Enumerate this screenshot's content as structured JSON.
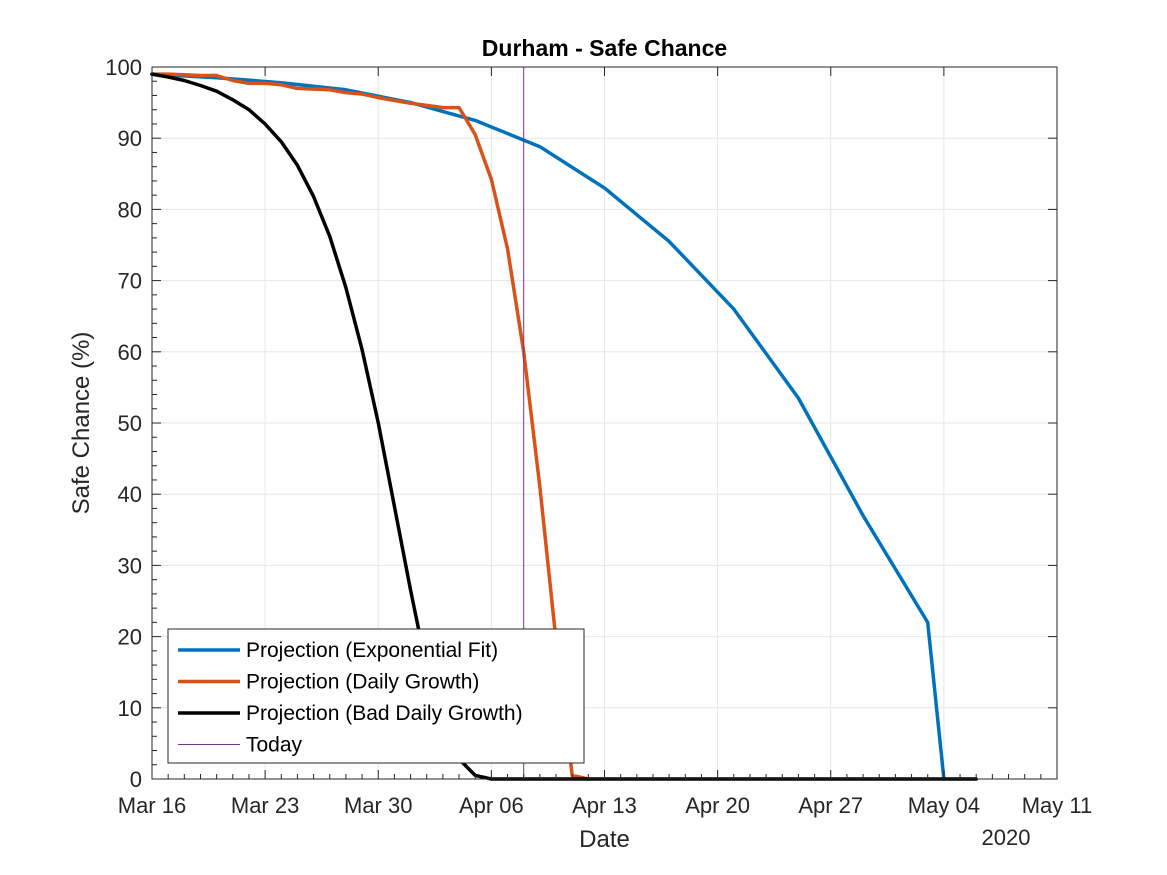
{
  "chart_data": {
    "type": "line",
    "title": "Durham - Safe Chance",
    "xlabel": "Date",
    "ylabel": "Safe Chance (%)",
    "year_label": "2020",
    "x_ticks": [
      "Mar 16",
      "Mar 23",
      "Mar 30",
      "Apr 06",
      "Apr 13",
      "Apr 20",
      "Apr 27",
      "May 04",
      "May 11"
    ],
    "y_ticks": [
      "0",
      "10",
      "20",
      "30",
      "40",
      "50",
      "60",
      "70",
      "80",
      "90",
      "100"
    ],
    "xlim": [
      "2020-03-16",
      "2020-05-11"
    ],
    "ylim": [
      0,
      100
    ],
    "grid": true,
    "legend_position": "bottom-left",
    "series": [
      {
        "name": "Projection (Exponential Fit)",
        "color": "#0072BD",
        "x": [
          "2020-03-16",
          "2020-03-20",
          "2020-03-24",
          "2020-03-28",
          "2020-04-01",
          "2020-04-05",
          "2020-04-09",
          "2020-04-13",
          "2020-04-17",
          "2020-04-21",
          "2020-04-25",
          "2020-04-29",
          "2020-05-03",
          "2020-05-04"
        ],
        "y": [
          99,
          98.5,
          97.8,
          96.8,
          95,
          92.5,
          88.8,
          83,
          75.5,
          66,
          53.5,
          37,
          22,
          0
        ]
      },
      {
        "name": "Projection (Daily Growth)",
        "color": "#D95319",
        "x": [
          "2020-03-16",
          "2020-03-17",
          "2020-03-18",
          "2020-03-19",
          "2020-03-20",
          "2020-03-21",
          "2020-03-22",
          "2020-03-23",
          "2020-03-24",
          "2020-03-25",
          "2020-03-26",
          "2020-03-27",
          "2020-03-28",
          "2020-03-29",
          "2020-03-30",
          "2020-03-31",
          "2020-04-01",
          "2020-04-02",
          "2020-04-03",
          "2020-04-04",
          "2020-04-05",
          "2020-04-06",
          "2020-04-07",
          "2020-04-08",
          "2020-04-09",
          "2020-04-10",
          "2020-04-11",
          "2020-04-12"
        ],
        "y": [
          99,
          99,
          98.9,
          98.8,
          98.8,
          98.1,
          97.7,
          97.7,
          97.5,
          97,
          96.9,
          96.8,
          96.4,
          96.2,
          95.7,
          95.3,
          94.9,
          94.6,
          94.3,
          94.3,
          90.5,
          84.2,
          74.5,
          60,
          41,
          19.5,
          0.5,
          0
        ]
      },
      {
        "name": "Projection (Bad Daily Growth)",
        "color": "#000000",
        "x": [
          "2020-03-16",
          "2020-03-17",
          "2020-03-18",
          "2020-03-19",
          "2020-03-20",
          "2020-03-21",
          "2020-03-22",
          "2020-03-23",
          "2020-03-24",
          "2020-03-25",
          "2020-03-26",
          "2020-03-27",
          "2020-03-28",
          "2020-03-29",
          "2020-03-30",
          "2020-03-31",
          "2020-04-01",
          "2020-04-02",
          "2020-04-03",
          "2020-04-04",
          "2020-04-05",
          "2020-04-06",
          "2020-04-07",
          "2020-04-08",
          "2020-05-06"
        ],
        "y": [
          99,
          98.6,
          98.1,
          97.4,
          96.6,
          95.4,
          94,
          92,
          89.5,
          86.2,
          81.8,
          76.2,
          69,
          60.3,
          50,
          38.3,
          26.5,
          15.5,
          7.5,
          2.8,
          0.5,
          0,
          0,
          0,
          0
        ]
      },
      {
        "name": "Today",
        "color": "#7E2F8E",
        "x": [
          "2020-04-08",
          "2020-04-08"
        ],
        "y": [
          0,
          100
        ]
      }
    ]
  }
}
